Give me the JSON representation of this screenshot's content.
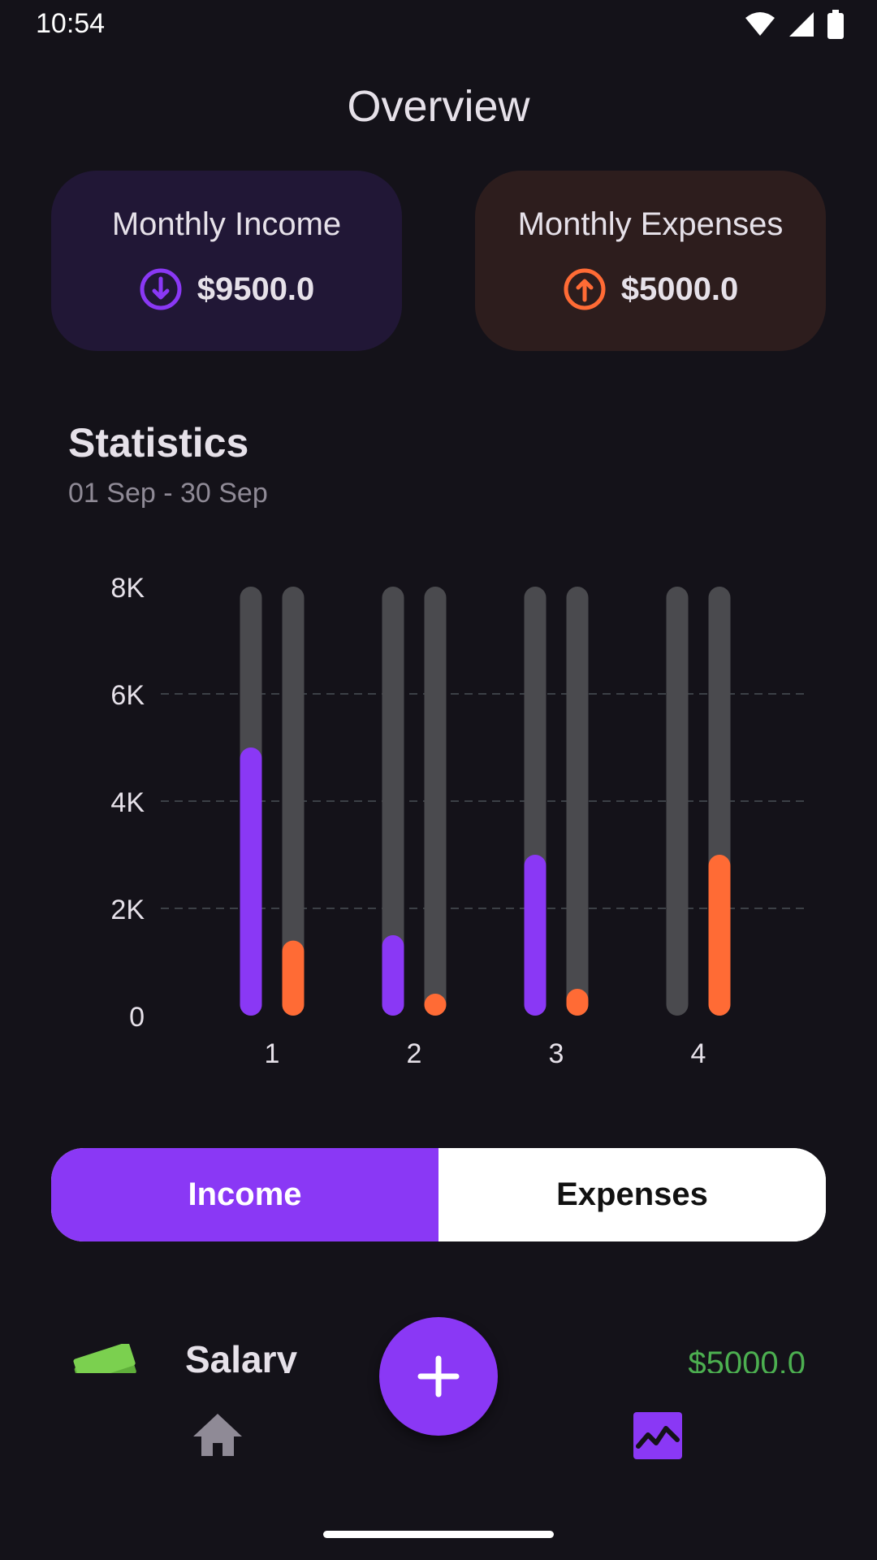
{
  "status_bar": {
    "time": "10:54"
  },
  "header": {
    "title": "Overview"
  },
  "summary": {
    "income": {
      "label": "Monthly Income",
      "value": "$9500.0",
      "color": "#8a38f5"
    },
    "expenses": {
      "label": "Monthly Expenses",
      "value": "$5000.0",
      "color": "#ff6b35"
    }
  },
  "statistics": {
    "title": "Statistics",
    "range": "01 Sep - 30 Sep"
  },
  "chart_data": {
    "type": "bar",
    "categories": [
      "1",
      "2",
      "3",
      "4"
    ],
    "series": [
      {
        "name": "Income",
        "values": [
          5000,
          1500,
          3000,
          0
        ],
        "color": "#8a38f5"
      },
      {
        "name": "Expenses",
        "values": [
          1400,
          200,
          500,
          3000
        ],
        "color": "#ff6b35"
      }
    ],
    "y_ticks": [
      "0",
      "2K",
      "4K",
      "6K",
      "8K"
    ],
    "ylim": [
      0,
      8000
    ],
    "grid": "dashed horizontal at 2K, 4K, 6K"
  },
  "toggle": {
    "income_label": "Income",
    "expenses_label": "Expenses",
    "selected": "Income"
  },
  "transactions": [
    {
      "icon": "money-icon",
      "title": "Salary",
      "amount": "$5000.0"
    }
  ],
  "nav": {
    "home_icon": "home-icon",
    "stats_icon": "stats-icon",
    "accent": "#8a38f5"
  }
}
